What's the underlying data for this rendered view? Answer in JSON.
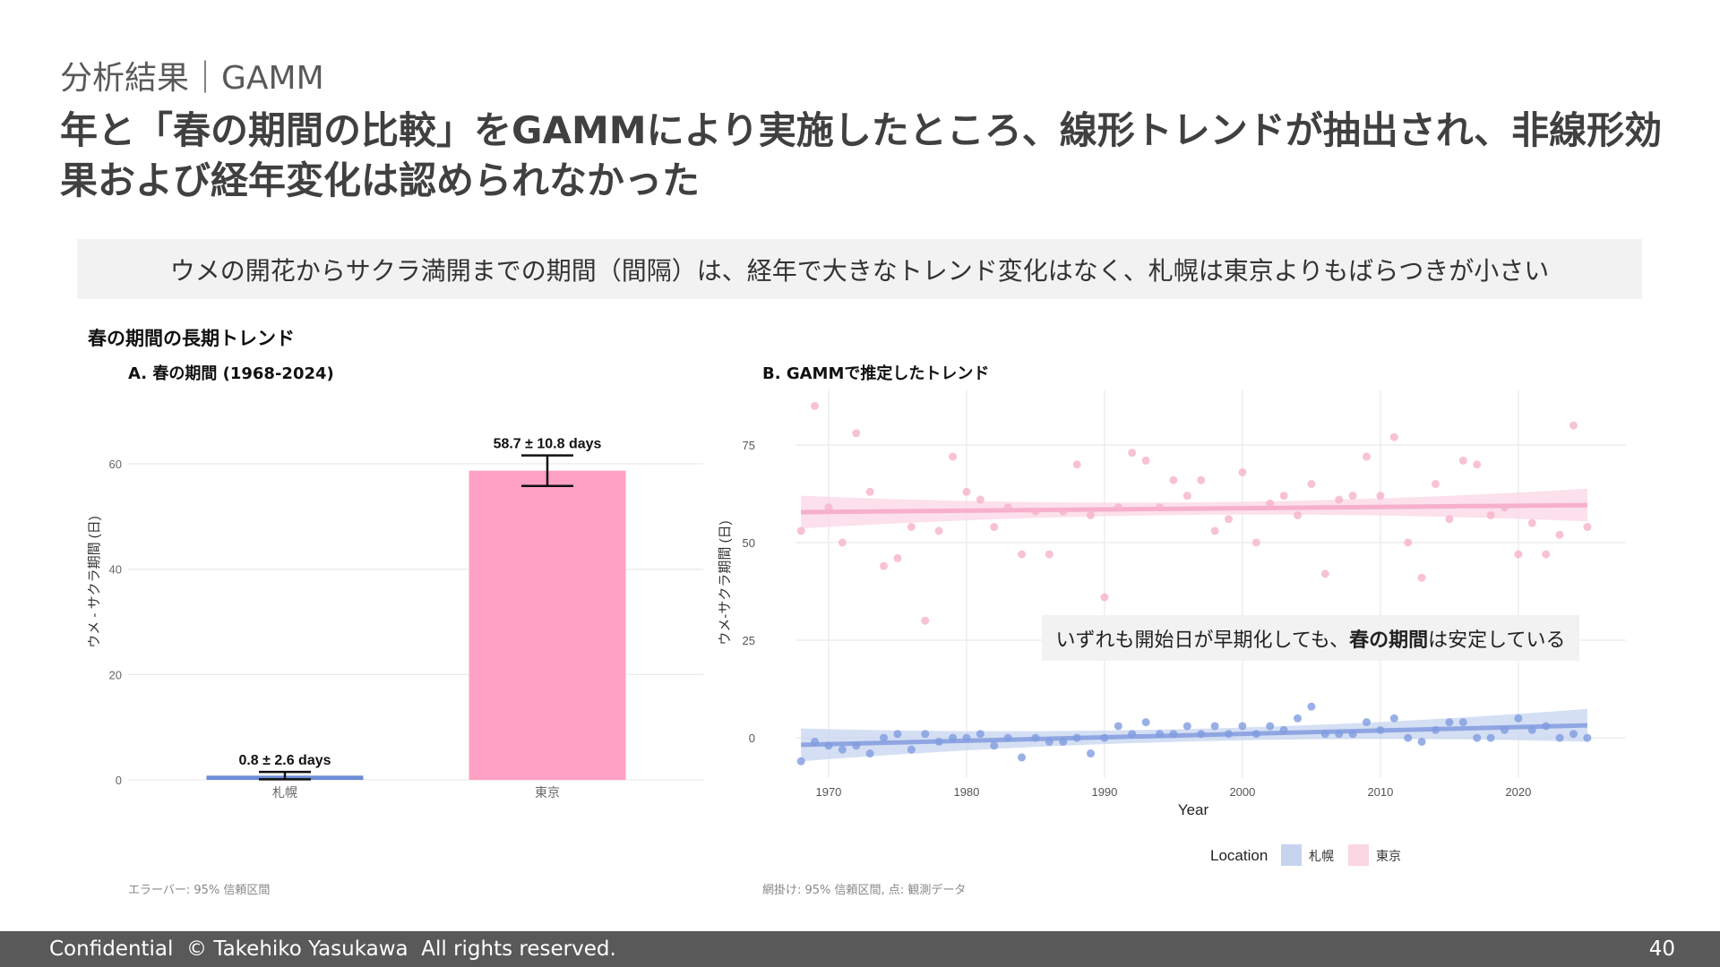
{
  "section_label": "分析結果｜GAMM",
  "title": "年と「春の期間の比較」をGAMMにより実施したところ、線形トレンドが抽出され、非線形効果および経年変化は認められなかった",
  "banner": "ウメの開花からサクラ満開までの期間（間隔）は、経年で大きなトレンド変化はなく、札幌は東京よりもばらつきが小さい",
  "subheading": "春の期間の長期トレンド",
  "annotation": {
    "prefix": "いずれも開始日が早期化しても、",
    "bold": "春の期間",
    "suffix": "は安定している"
  },
  "footer": {
    "text": "Confidential  © Takehiko Yasukawa  All rights reserved.",
    "page": "40"
  },
  "colors": {
    "sapporo": "#6b8cd6",
    "tokyo": "#ffa0c5",
    "sapporo_point": "#7f9ce0",
    "tokyo_point": "#f6b3cc"
  },
  "chart_data": [
    {
      "type": "bar",
      "title": "A. 春の期間 (1968-2024)",
      "ylabel": "ウメ - サクラ期間 (日)",
      "xlabel": "",
      "categories": [
        "札幌",
        "東京"
      ],
      "values": [
        0.8,
        58.7
      ],
      "ci_half": [
        0.7,
        2.9
      ],
      "labels": [
        "0.8 ± 2.6 days",
        "58.7 ± 10.8 days"
      ],
      "yticks": [
        0,
        20,
        40,
        60
      ],
      "ylim": [
        0,
        73
      ],
      "grid": true,
      "note": "エラーバー: 95% 信頼区間"
    },
    {
      "type": "scatter",
      "title": "B. GAMMで推定したトレンド",
      "xlabel": "Year",
      "ylabel": "ウメ-サクラ期間 (日)",
      "xlim": [
        1967.6,
        2027.8
      ],
      "ylim": [
        -10.3,
        89.2
      ],
      "xticks": [
        1970,
        1980,
        1990,
        2000,
        2010,
        2020
      ],
      "yticks": [
        0,
        25,
        50,
        75
      ],
      "grid": true,
      "legend": {
        "title": "Location",
        "position": "bottom",
        "entries": [
          "札幌",
          "東京"
        ]
      },
      "note": "網掛け: 95% 信頼区間, 点: 観測データ",
      "x_start": 1968,
      "series": [
        {
          "name": "札幌",
          "values": [
            -6,
            -1,
            -2,
            -3,
            -2,
            -4,
            0,
            1,
            -3,
            1,
            -1,
            0,
            0,
            1,
            -2,
            0,
            -5,
            0,
            -1,
            -1,
            0,
            -4,
            0,
            3,
            1,
            4,
            1,
            1,
            3,
            1,
            3,
            1,
            3,
            1,
            3,
            2,
            5,
            8,
            1,
            1,
            1,
            4,
            2,
            5,
            0,
            -1,
            2,
            4,
            4,
            0,
            0,
            2,
            5,
            2,
            3,
            0,
            1,
            0
          ],
          "trend": {
            "x": [
              1968,
              2025
            ],
            "y": [
              -1.8,
              3.2
            ],
            "band_end": 4.2,
            "band_mid": 1.6
          }
        },
        {
          "name": "東京",
          "values": [
            53,
            85,
            59,
            50,
            78,
            63,
            44,
            46,
            54,
            30,
            53,
            72,
            63,
            61,
            54,
            59,
            47,
            58,
            47,
            58,
            70,
            57,
            36,
            59,
            73,
            71,
            59,
            66,
            62,
            66,
            53,
            56,
            68,
            50,
            60,
            62,
            57,
            65,
            42,
            61,
            62,
            72,
            62,
            77,
            50,
            41,
            65,
            56,
            71,
            70,
            57,
            59,
            47,
            55,
            47,
            52,
            80,
            54
          ],
          "trend": {
            "x": [
              1968,
              2025
            ],
            "y": [
              57.8,
              59.6
            ],
            "band_end": 4.2,
            "band_mid": 1.6
          }
        }
      ]
    }
  ]
}
